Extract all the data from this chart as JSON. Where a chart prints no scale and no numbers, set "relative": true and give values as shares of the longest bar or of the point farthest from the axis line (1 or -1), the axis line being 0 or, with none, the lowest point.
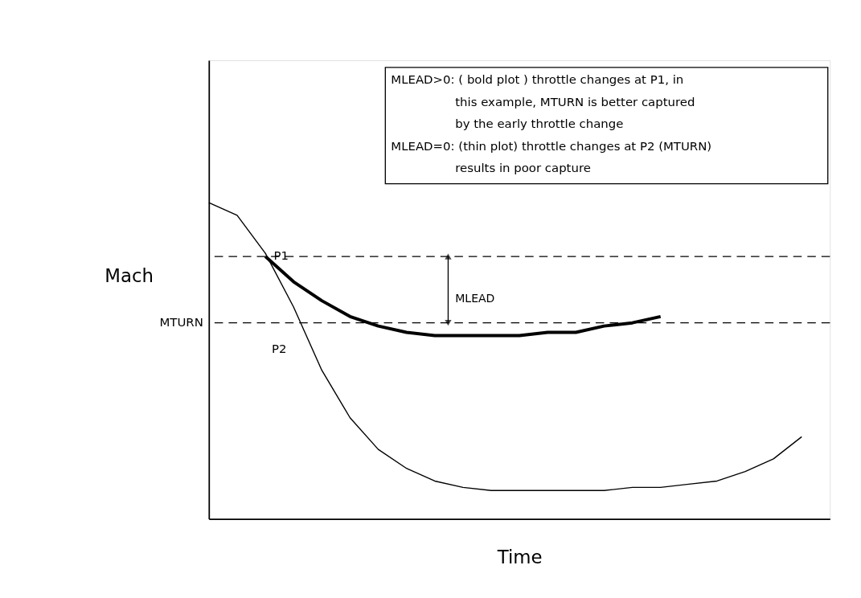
{
  "chart_data": {
    "type": "line",
    "relative": true,
    "xlabel": "Time",
    "ylabel": "Mach",
    "categories": [
      null,
      null,
      null,
      null,
      null,
      null,
      null,
      null,
      null,
      null,
      null,
      null,
      null,
      null,
      null,
      null,
      null,
      null,
      null,
      null,
      null,
      null
    ],
    "series": [
      {
        "color": "#000000",
        "values": [
          1.0,
          0.96,
          0.84,
          0.67,
          0.47,
          0.32,
          0.22,
          0.16,
          0.12,
          0.1,
          0.09,
          0.09,
          0.09,
          0.09,
          0.09,
          0.1,
          0.1,
          0.11,
          0.12,
          0.15,
          0.19,
          0.26
        ]
      },
      {
        "color": "#000000",
        "values": [
          null,
          null,
          0.83,
          0.75,
          0.69,
          0.64,
          0.61,
          0.59,
          0.58,
          0.58,
          0.58,
          0.58,
          0.59,
          0.59,
          0.61,
          0.62,
          0.64,
          null,
          null,
          null,
          null,
          null
        ]
      }
    ],
    "ref_lines": [
      {
        "axis": "y",
        "value": 0.83,
        "label": null,
        "line_style": "dashed",
        "color": "#000000"
      },
      {
        "axis": "y",
        "value": 0.62,
        "label": "MTURN",
        "line_style": "dashed",
        "color": "#000000"
      }
    ],
    "annotations": [
      "P1",
      "P2",
      "MLEAD",
      "MLEAD>0: ( bold plot ) throttle changes at P1, in",
      "this example, MTURN is better captured",
      "by the early throttle change",
      "MLEAD=0: (thin plot) throttle changes at P2 (MTURN)",
      "results in poor capture"
    ],
    "grid": false,
    "legend": false,
    "tick_labels": false,
    "marker": "none",
    "line_style": "solid"
  }
}
